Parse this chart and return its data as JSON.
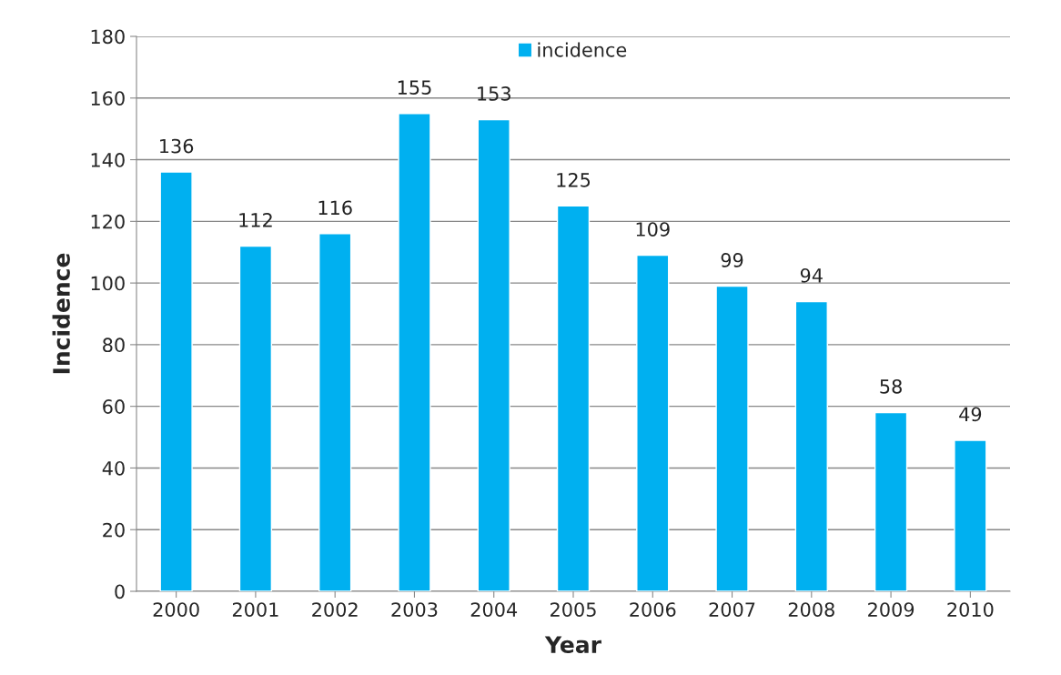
{
  "chart_data": {
    "type": "bar",
    "xlabel": "Year",
    "ylabel": "Incidence",
    "categories": [
      "2000",
      "2001",
      "2002",
      "2003",
      "2004",
      "2005",
      "2006",
      "2007",
      "2008",
      "2009",
      "2010"
    ],
    "series": [
      {
        "name": "incidence",
        "color": "#00b0f0",
        "values": [
          136,
          112,
          116,
          155,
          153,
          125,
          109,
          99,
          94,
          58,
          49
        ]
      }
    ],
    "ylim": [
      0,
      180
    ],
    "yticks": [
      0,
      20,
      40,
      60,
      80,
      100,
      120,
      140,
      160,
      180
    ],
    "grid": "y",
    "legend": "top",
    "data_labels": true
  }
}
